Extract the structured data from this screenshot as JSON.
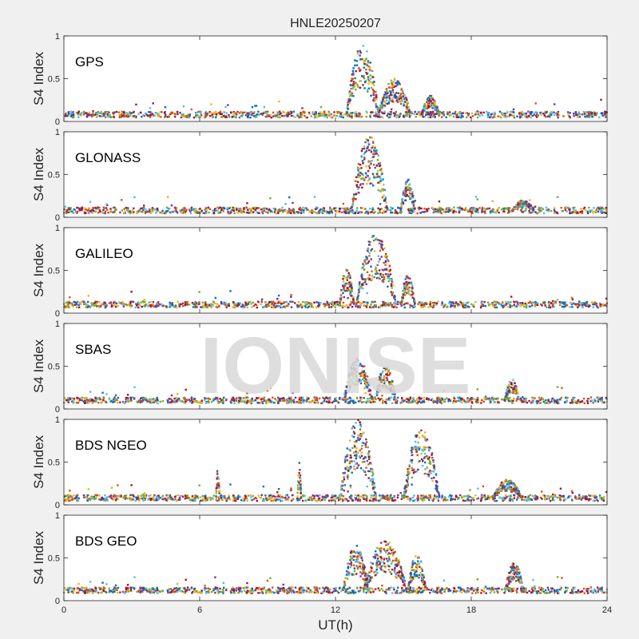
{
  "title": "HNLE20250207",
  "xlabel": "UT(h)",
  "watermark": "IONISE",
  "colors": {
    "background": "#f0f0f0",
    "axes": "#ffffff",
    "series": [
      "#0072BD",
      "#D95319",
      "#EDB120",
      "#7E2F8E",
      "#77AC30",
      "#4DBEEE",
      "#A2142F"
    ]
  },
  "chart_data": [
    {
      "type": "scatter",
      "label": "GPS",
      "ylabel": "S4 Index",
      "xlim": [
        0,
        24
      ],
      "ylim": [
        0,
        1
      ],
      "yticks": [
        "0",
        "0.5",
        "1"
      ],
      "baseline": 0.08,
      "events": [
        {
          "center": 13.2,
          "peak": 0.9,
          "width": 0.9
        },
        {
          "center": 14.6,
          "peak": 0.5,
          "width": 0.9
        },
        {
          "center": 16.2,
          "peak": 0.3,
          "width": 0.5
        }
      ]
    },
    {
      "type": "scatter",
      "label": "GLONASS",
      "ylabel": "S4 Index",
      "xlim": [
        0,
        24
      ],
      "ylim": [
        0,
        1
      ],
      "yticks": [
        "0",
        "0.5",
        "1"
      ],
      "baseline": 0.08,
      "events": [
        {
          "center": 13.5,
          "peak": 0.95,
          "width": 1.0
        },
        {
          "center": 15.2,
          "peak": 0.45,
          "width": 0.4
        },
        {
          "center": 20.3,
          "peak": 0.2,
          "width": 0.6
        }
      ]
    },
    {
      "type": "scatter",
      "label": "GALILEO",
      "ylabel": "S4 Index",
      "xlim": [
        0,
        24
      ],
      "ylim": [
        0,
        1
      ],
      "yticks": [
        "0",
        "0.5",
        "1"
      ],
      "baseline": 0.1,
      "events": [
        {
          "center": 12.5,
          "peak": 0.55,
          "width": 0.4
        },
        {
          "center": 13.8,
          "peak": 0.95,
          "width": 1.1
        },
        {
          "center": 15.2,
          "peak": 0.45,
          "width": 0.4
        }
      ]
    },
    {
      "type": "scatter",
      "label": "SBAS",
      "ylabel": "S4 Index",
      "xlim": [
        0,
        24
      ],
      "ylim": [
        0,
        1
      ],
      "yticks": [
        "0",
        "0.5",
        "1"
      ],
      "baseline": 0.1,
      "events": [
        {
          "center": 13.0,
          "peak": 0.6,
          "width": 0.8
        },
        {
          "center": 14.2,
          "peak": 0.5,
          "width": 0.6
        },
        {
          "center": 19.8,
          "peak": 0.35,
          "width": 0.4
        }
      ]
    },
    {
      "type": "scatter",
      "label": "BDS NGEO",
      "ylabel": "S4 Index",
      "xlim": [
        0,
        24
      ],
      "ylim": [
        0,
        1
      ],
      "yticks": [
        "0",
        "0.5",
        "1"
      ],
      "baseline": 0.08,
      "events": [
        {
          "center": 13.0,
          "peak": 1.0,
          "width": 1.0
        },
        {
          "center": 15.8,
          "peak": 0.9,
          "width": 1.0
        },
        {
          "center": 19.6,
          "peak": 0.3,
          "width": 0.8
        },
        {
          "center": 6.8,
          "peak": 0.45,
          "width": 0.1
        },
        {
          "center": 10.4,
          "peak": 0.5,
          "width": 0.1
        }
      ]
    },
    {
      "type": "scatter",
      "label": "BDS GEO",
      "ylabel": "S4 Index",
      "xlim": [
        0,
        24
      ],
      "ylim": [
        0,
        1
      ],
      "yticks": [
        "0",
        "0.5",
        "1"
      ],
      "baseline": 0.12,
      "events": [
        {
          "center": 12.9,
          "peak": 0.65,
          "width": 0.7
        },
        {
          "center": 14.2,
          "peak": 0.7,
          "width": 1.2
        },
        {
          "center": 15.6,
          "peak": 0.55,
          "width": 0.5
        },
        {
          "center": 19.9,
          "peak": 0.45,
          "width": 0.5
        }
      ]
    }
  ],
  "xticks": [
    "0",
    "6",
    "12",
    "18",
    "24"
  ]
}
